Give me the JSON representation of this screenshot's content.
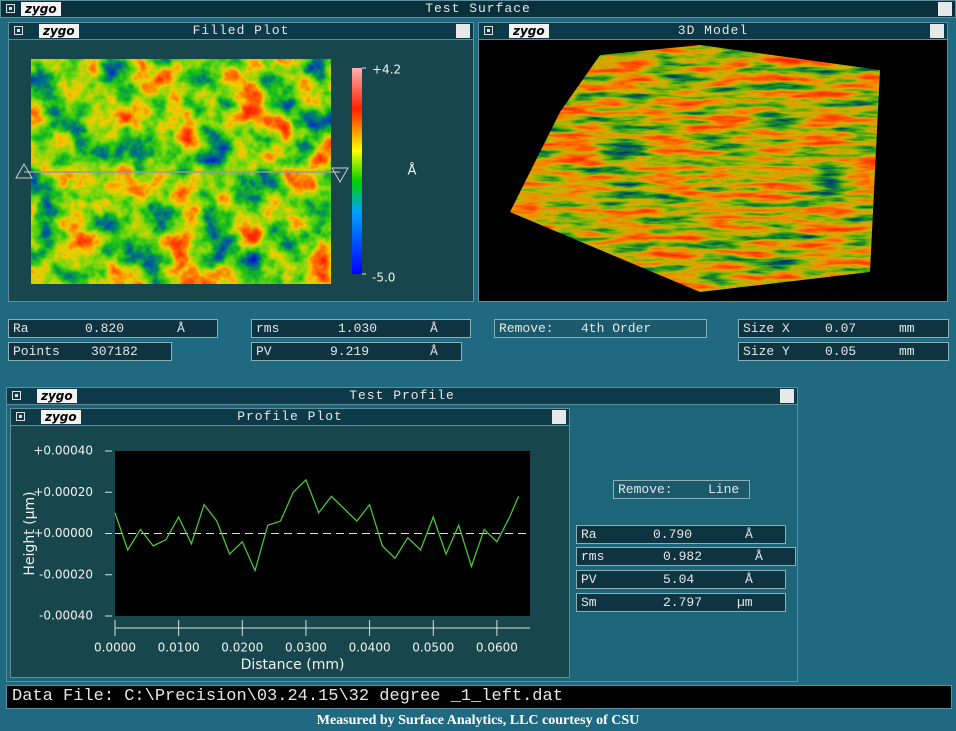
{
  "logo": "zygo",
  "window_title": "Test Surface",
  "filled_plot": {
    "title": "Filled Plot",
    "colorbar": {
      "clim": [
        -5.0,
        4.2
      ],
      "ticks": [
        {
          "value": 4.2,
          "label": "+4.2"
        },
        {
          "value": -5.0,
          "label": "-5.0"
        }
      ],
      "unit": "Å"
    }
  },
  "model_3d": {
    "title": "3D Model"
  },
  "surface_stats": [
    {
      "label": "Ra",
      "value": "0.820",
      "unit": "Å"
    },
    {
      "label": "Points",
      "value": "307182"
    },
    {
      "label": "rms",
      "value": "1.030",
      "unit": "Å"
    },
    {
      "label": "PV",
      "value": "9.219",
      "unit": "Å"
    },
    {
      "label": "Remove:",
      "value": "4th Order"
    },
    {
      "label": "Size X",
      "value": "0.07",
      "unit": "mm"
    },
    {
      "label": "Size Y",
      "value": "0.05",
      "unit": "mm"
    }
  ],
  "test_profile": {
    "title": "Test Profile",
    "plot_title": "Profile Plot",
    "chart_data": {
      "type": "line",
      "x_label": "Distance (mm)",
      "y_label": "Height (µm)",
      "color": "#4cc23c",
      "xlim": [
        0,
        0.0652
      ],
      "ylim": [
        -0.0004,
        0.0004
      ],
      "xticks": [
        {
          "value": 0,
          "label": "0.0000"
        },
        {
          "value": 0.01,
          "label": "0.0100"
        },
        {
          "value": 0.02,
          "label": "0.0200"
        },
        {
          "value": 0.03,
          "label": "0.0300"
        },
        {
          "value": 0.04,
          "label": "0.0400"
        },
        {
          "value": 0.05,
          "label": "0.0500"
        },
        {
          "value": 0.06,
          "label": "0.0600"
        }
      ],
      "yticks": [
        {
          "value": 0.0004,
          "label": "+0.00040"
        },
        {
          "value": 0.0002,
          "label": "+0.00020"
        },
        {
          "value": 0,
          "label": "+0.00000"
        },
        {
          "value": -0.0002,
          "label": "-0.00020"
        },
        {
          "value": -0.0004,
          "label": "-0.00040"
        }
      ],
      "x": [
        0,
        0.002,
        0.004,
        0.006,
        0.008,
        0.01,
        0.012,
        0.014,
        0.016,
        0.018,
        0.02,
        0.022,
        0.024,
        0.026,
        0.028,
        0.03,
        0.032,
        0.034,
        0.036,
        0.038,
        0.04,
        0.042,
        0.044,
        0.046,
        0.048,
        0.05,
        0.052,
        0.054,
        0.056,
        0.058,
        0.06,
        0.062,
        0.0634
      ],
      "values": [
        0.0001,
        -8e-05,
        2e-05,
        -6e-05,
        -3e-05,
        8e-05,
        -5e-05,
        0.00014,
        6e-05,
        -0.0001,
        -4e-05,
        -0.00018,
        4e-05,
        6e-05,
        0.0002,
        0.00026,
        0.0001,
        0.00018,
        0.00012,
        6e-05,
        0.00014,
        -6e-05,
        -0.00012,
        -2e-05,
        -8e-05,
        8e-05,
        -0.0001,
        4e-05,
        -0.00016,
        2e-05,
        -4e-05,
        8e-05,
        0.00018
      ]
    },
    "remove": {
      "label": "Remove:",
      "value": "Line"
    },
    "stats": [
      {
        "label": "Ra",
        "value": "0.790",
        "unit": "Å"
      },
      {
        "label": "rms",
        "value": "0.982",
        "unit": "Å"
      },
      {
        "label": "PV",
        "value": "5.04",
        "unit": "Å"
      },
      {
        "label": "Sm",
        "value": "2.797",
        "unit": "µm"
      }
    ]
  },
  "data_file": {
    "label": "Data File:",
    "path": "C:\\Precision\\03.24.15\\32 degree _1_left.dat"
  },
  "footer": "Measured by Surface Analytics, LLC courtesy of CSU"
}
